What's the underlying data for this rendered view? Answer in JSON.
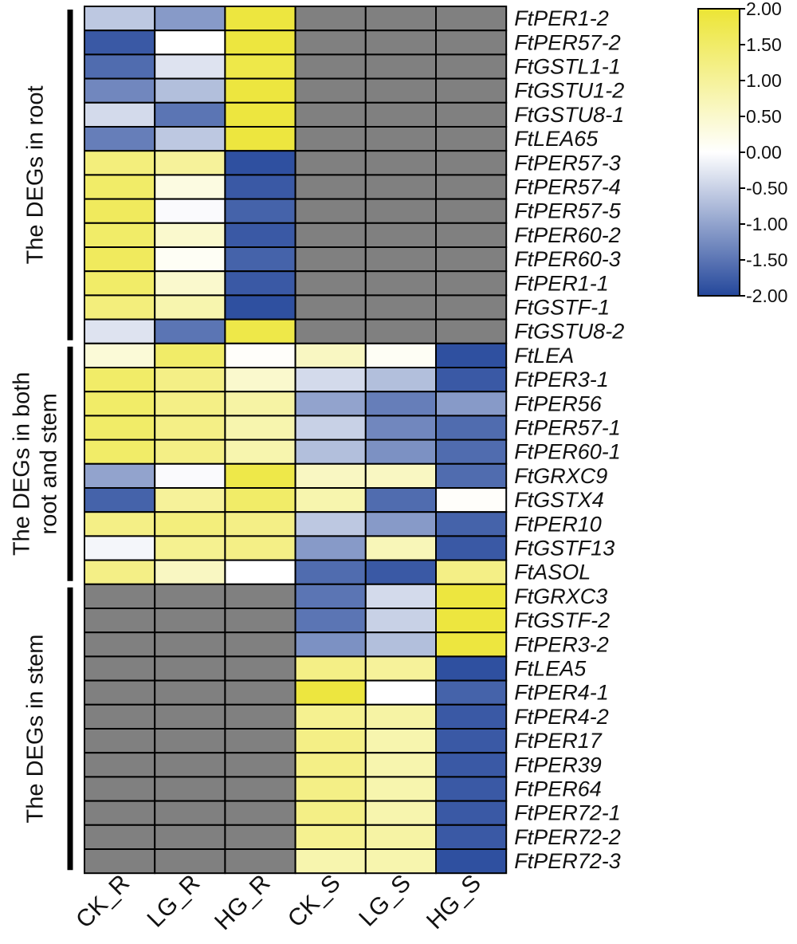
{
  "chart_data": {
    "type": "heatmap",
    "title": "",
    "columns": [
      "CK_R",
      "LG_R",
      "HG_R",
      "CK_S",
      "LG_S",
      "HG_S"
    ],
    "colorbar": {
      "min": -2.0,
      "max": 2.0,
      "colors": {
        "low": "#24479b",
        "mid": "#ffffff",
        "high": "#ece535"
      },
      "missing_color": "#808080",
      "tick_values": [
        2.0,
        1.5,
        1.0,
        0.5,
        0.0,
        -0.5,
        -1.0,
        -1.5,
        -2.0
      ],
      "tick_labels": [
        "2.00",
        "1.50",
        "1.00",
        "0.50",
        "0.00",
        "-0.50",
        "-1.00",
        "-1.50",
        "-2.00"
      ]
    },
    "groups": [
      {
        "label_lines": [
          "The DEGs in root"
        ],
        "start_row": 0,
        "end_row": 13
      },
      {
        "label_lines": [
          "The DEGs in both",
          "root and stem"
        ],
        "start_row": 14,
        "end_row": 23
      },
      {
        "label_lines": [
          "The DEGs in stem"
        ],
        "start_row": 24,
        "end_row": 35
      }
    ],
    "rows": [
      {
        "gene": "FtPER1-2",
        "values": [
          -0.6,
          -1.1,
          1.9,
          null,
          null,
          null
        ]
      },
      {
        "gene": "FtPER57-2",
        "values": [
          -1.8,
          0.0,
          1.9,
          null,
          null,
          null
        ]
      },
      {
        "gene": "FtGSTL1-1",
        "values": [
          -1.6,
          -0.3,
          1.8,
          null,
          null,
          null
        ]
      },
      {
        "gene": "FtGSTU1-2",
        "values": [
          -1.3,
          -0.7,
          1.9,
          null,
          null,
          null
        ]
      },
      {
        "gene": "FtGSTU8-1",
        "values": [
          -0.4,
          -1.5,
          1.9,
          null,
          null,
          null
        ]
      },
      {
        "gene": "FtLEA65",
        "values": [
          -1.4,
          -0.6,
          1.9,
          null,
          null,
          null
        ]
      },
      {
        "gene": "FtPER57-3",
        "values": [
          1.3,
          1.0,
          -1.9,
          null,
          null,
          null
        ]
      },
      {
        "gene": "FtPER57-4",
        "values": [
          1.5,
          0.3,
          -1.8,
          null,
          null,
          null
        ]
      },
      {
        "gene": "FtPER57-5",
        "values": [
          1.6,
          -0.05,
          -1.7,
          null,
          null,
          null
        ]
      },
      {
        "gene": "FtPER60-2",
        "values": [
          1.5,
          0.5,
          -1.8,
          null,
          null,
          null
        ]
      },
      {
        "gene": "FtPER60-3",
        "values": [
          1.6,
          0.1,
          -1.7,
          null,
          null,
          null
        ]
      },
      {
        "gene": "FtPER1-1",
        "values": [
          1.5,
          0.5,
          -1.8,
          null,
          null,
          null
        ]
      },
      {
        "gene": "FtGSTF-1",
        "values": [
          1.3,
          0.8,
          -1.9,
          null,
          null,
          null
        ]
      },
      {
        "gene": "FtGSTU8-2",
        "values": [
          -0.3,
          -1.5,
          1.8,
          null,
          null,
          null
        ]
      },
      {
        "gene": "FtLEA",
        "values": [
          0.4,
          1.5,
          0.05,
          0.6,
          0.1,
          -1.9
        ]
      },
      {
        "gene": "FtPER3-1",
        "values": [
          1.5,
          1.2,
          0.5,
          -0.4,
          -0.7,
          -1.8
        ]
      },
      {
        "gene": "FtPER56",
        "values": [
          1.5,
          1.2,
          0.9,
          -1.0,
          -1.4,
          -1.1
        ]
      },
      {
        "gene": "FtPER57-1",
        "values": [
          1.5,
          1.2,
          0.8,
          -0.5,
          -1.3,
          -1.6
        ]
      },
      {
        "gene": "FtPER60-1",
        "values": [
          1.5,
          1.2,
          0.8,
          -0.7,
          -1.2,
          -1.6
        ]
      },
      {
        "gene": "FtGRXC9",
        "values": [
          -1.0,
          -0.05,
          1.8,
          0.6,
          0.6,
          -1.6
        ]
      },
      {
        "gene": "FtGSTX4",
        "values": [
          -1.7,
          1.0,
          1.5,
          0.8,
          -1.6,
          0.05
        ]
      },
      {
        "gene": "FtPER10",
        "values": [
          1.2,
          1.3,
          1.2,
          -0.6,
          -1.1,
          -1.7
        ]
      },
      {
        "gene": "FtGSTF13",
        "values": [
          -0.1,
          1.1,
          1.2,
          -1.1,
          0.7,
          -1.8
        ]
      },
      {
        "gene": "FtASOL",
        "values": [
          1.2,
          0.6,
          0.0,
          -1.6,
          -1.8,
          1.2
        ]
      },
      {
        "gene": "FtGRXC3",
        "values": [
          null,
          null,
          null,
          -1.5,
          -0.4,
          1.9
        ]
      },
      {
        "gene": "FtGSTF-2",
        "values": [
          null,
          null,
          null,
          -1.5,
          -0.5,
          1.9
        ]
      },
      {
        "gene": "FtPER3-2",
        "values": [
          null,
          null,
          null,
          -1.2,
          -0.7,
          1.9
        ]
      },
      {
        "gene": "FtLEA5",
        "values": [
          null,
          null,
          null,
          1.2,
          1.0,
          -1.9
        ]
      },
      {
        "gene": "FtPER4-1",
        "values": [
          null,
          null,
          null,
          1.9,
          0.0,
          -1.7
        ]
      },
      {
        "gene": "FtPER4-2",
        "values": [
          null,
          null,
          null,
          1.1,
          0.9,
          -1.8
        ]
      },
      {
        "gene": "FtPER17",
        "values": [
          null,
          null,
          null,
          1.2,
          0.8,
          -1.8
        ]
      },
      {
        "gene": "FtPER39",
        "values": [
          null,
          null,
          null,
          1.2,
          0.8,
          -1.8
        ]
      },
      {
        "gene": "FtPER64",
        "values": [
          null,
          null,
          null,
          1.2,
          0.8,
          -1.8
        ]
      },
      {
        "gene": "FtPER72-1",
        "values": [
          null,
          null,
          null,
          1.2,
          0.8,
          -1.8
        ]
      },
      {
        "gene": "FtPER72-2",
        "values": [
          null,
          null,
          null,
          1.1,
          0.9,
          -1.8
        ]
      },
      {
        "gene": "FtPER72-3",
        "values": [
          null,
          null,
          null,
          0.8,
          0.8,
          -1.9
        ]
      }
    ]
  }
}
